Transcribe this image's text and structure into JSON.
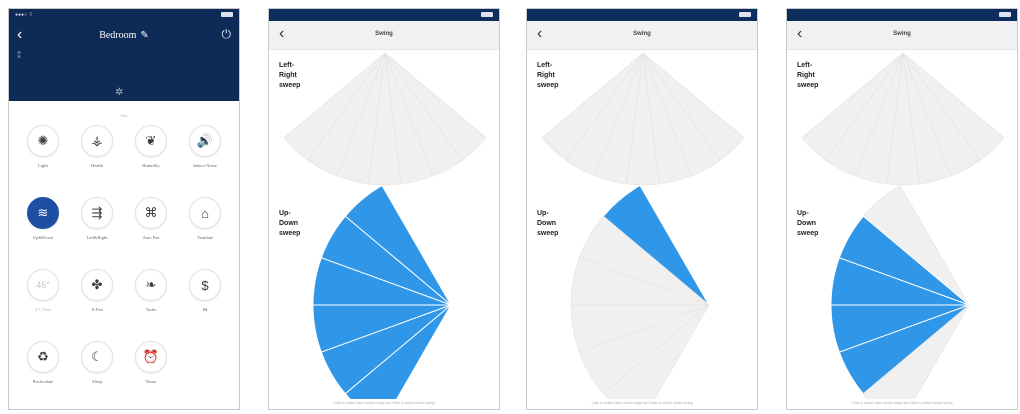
{
  "screen1": {
    "title": "Bedroom",
    "edit_icon": "pencil-icon",
    "power_icon": "power-icon",
    "fan_label": "Fan",
    "items": [
      {
        "label": "Light",
        "icon": "bulb-icon",
        "glyph": "✺",
        "state": "normal"
      },
      {
        "label": "Health",
        "icon": "pine-icon",
        "glyph": "⚶",
        "state": "normal"
      },
      {
        "label": "Humidify",
        "icon": "droplet-icon",
        "glyph": "❦",
        "state": "normal"
      },
      {
        "label": "Indoor Noise",
        "icon": "speaker-icon",
        "glyph": "🔊",
        "state": "normal"
      },
      {
        "label": "Up&Down",
        "icon": "vertical-swing-icon",
        "glyph": "≋",
        "state": "active"
      },
      {
        "label": "Left&Right",
        "icon": "horizontal-swing-icon",
        "glyph": "⇶",
        "state": "normal"
      },
      {
        "label": "Auto Fan",
        "icon": "fan-tile-icon",
        "glyph": "⌘",
        "state": "normal"
      },
      {
        "label": "Ventilate",
        "icon": "house-icon",
        "glyph": "⌂",
        "state": "normal"
      },
      {
        "label": "8°C Heat",
        "icon": "temp-icon",
        "glyph": "46°",
        "state": "dim"
      },
      {
        "label": "X-Fan",
        "icon": "xfan-icon",
        "glyph": "✤",
        "state": "normal"
      },
      {
        "label": "Turbo",
        "icon": "leaf-icon",
        "glyph": "❧",
        "state": "normal"
      },
      {
        "label": "$$",
        "icon": "dollar-icon",
        "glyph": "$",
        "state": "normal"
      },
      {
        "label": "Recirculate",
        "icon": "recycle-icon",
        "glyph": "♻",
        "state": "normal"
      },
      {
        "label": "Sleep",
        "icon": "moon-icon",
        "glyph": "☾",
        "state": "normal"
      },
      {
        "label": "Timer",
        "icon": "alarm-clock-icon",
        "glyph": "⏰",
        "state": "normal"
      }
    ]
  },
  "sweep_title": "Swing",
  "left_right_label": [
    "Left-",
    "Right",
    "sweep"
  ],
  "up_down_label": [
    "Up-",
    "Down",
    "sweep"
  ],
  "footer": "Click to select Vane stroke range and Slide to select stroke swing",
  "colors": {
    "active": "#2f96e8",
    "inactive": "#f0f0f0",
    "header": "#0e2a57"
  },
  "screens": [
    {
      "id": "s2",
      "ud_active_segments": [
        0,
        1,
        2,
        3,
        4,
        5
      ]
    },
    {
      "id": "s3",
      "ud_active_segments": [
        0
      ]
    },
    {
      "id": "s4",
      "ud_active_segments": [
        1,
        2,
        3,
        4
      ]
    }
  ]
}
